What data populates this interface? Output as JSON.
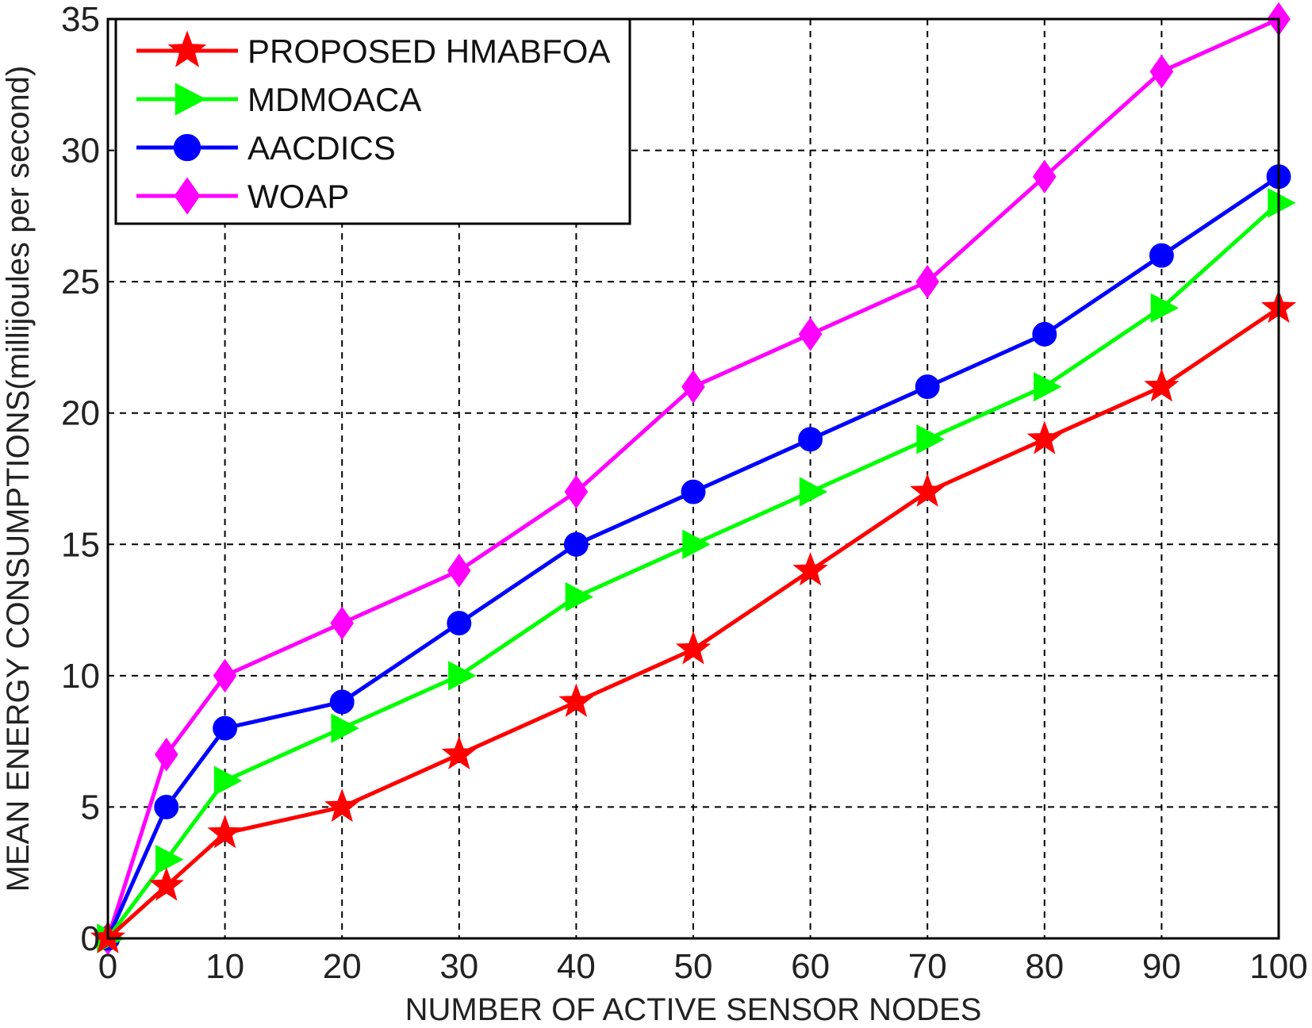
{
  "chart_data": {
    "type": "line",
    "xlabel": "NUMBER OF ACTIVE SENSOR NODES",
    "ylabel": "MEAN ENERGY CONSUMPTIONS(millijoules per second)",
    "xlim": [
      0,
      100
    ],
    "ylim": [
      0,
      35
    ],
    "xticks": [
      0,
      10,
      20,
      30,
      40,
      50,
      60,
      70,
      80,
      90,
      100
    ],
    "yticks": [
      0,
      5,
      10,
      15,
      20,
      25,
      30,
      35
    ],
    "grid": true,
    "legend_position": "top-left",
    "x": [
      0,
      5,
      10,
      20,
      30,
      40,
      50,
      60,
      70,
      80,
      90,
      100
    ],
    "series": [
      {
        "name": "PROPOSED HMABFOA",
        "color": "#ff0000",
        "marker": "star",
        "values": [
          0,
          2,
          4,
          5,
          7,
          9,
          11,
          14,
          17,
          19,
          21,
          24
        ]
      },
      {
        "name": "MDMOACA",
        "color": "#00ff00",
        "marker": "triangle-right",
        "values": [
          0,
          3,
          6,
          8,
          10,
          13,
          15,
          17,
          19,
          21,
          24,
          28
        ]
      },
      {
        "name": "AACDICS",
        "color": "#0000ff",
        "marker": "circle",
        "values": [
          0,
          5,
          8,
          9,
          12,
          15,
          17,
          19,
          21,
          23,
          26,
          29
        ]
      },
      {
        "name": "WOAP",
        "color": "#ff00ff",
        "marker": "diamond",
        "values": [
          0,
          7,
          10,
          12,
          14,
          17,
          21,
          23,
          25,
          29,
          33,
          35
        ]
      }
    ]
  }
}
